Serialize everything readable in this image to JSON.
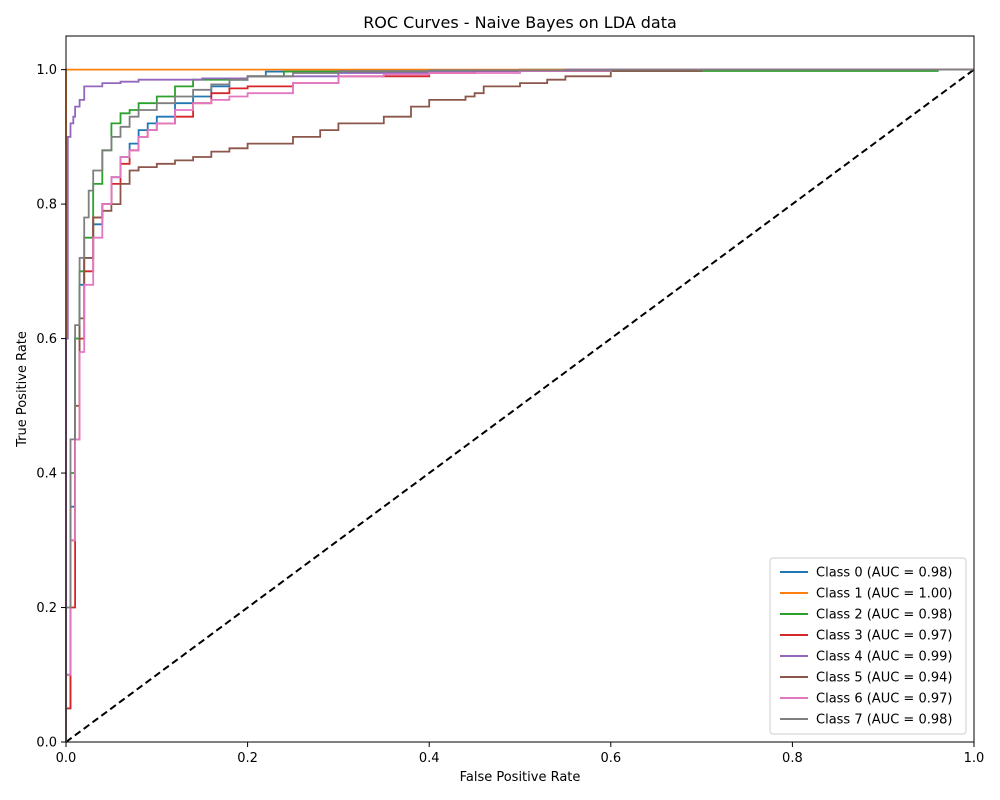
{
  "chart_data": {
    "type": "line",
    "title": "ROC Curves - Naive Bayes on LDA data",
    "xlabel": "False Positive Rate",
    "ylabel": "True Positive Rate",
    "xlim": [
      0.0,
      1.0
    ],
    "ylim": [
      0.0,
      1.05
    ],
    "xticks": [
      "0.0",
      "0.2",
      "0.4",
      "0.6",
      "0.8",
      "1.0"
    ],
    "yticks": [
      "0.0",
      "0.2",
      "0.4",
      "0.6",
      "0.8",
      "1.0"
    ],
    "grid": false,
    "legend_position": "lower-right",
    "series": [
      {
        "name": "Class 0 (AUC = 0.98)",
        "color": "#1f77b4",
        "points": [
          [
            0,
            0
          ],
          [
            0,
            0.05
          ],
          [
            0.005,
            0.35
          ],
          [
            0.01,
            0.6
          ],
          [
            0.015,
            0.68
          ],
          [
            0.02,
            0.72
          ],
          [
            0.03,
            0.77
          ],
          [
            0.04,
            0.8
          ],
          [
            0.05,
            0.84
          ],
          [
            0.06,
            0.87
          ],
          [
            0.07,
            0.89
          ],
          [
            0.08,
            0.91
          ],
          [
            0.09,
            0.92
          ],
          [
            0.1,
            0.93
          ],
          [
            0.12,
            0.95
          ],
          [
            0.14,
            0.96
          ],
          [
            0.16,
            0.975
          ],
          [
            0.18,
            0.985
          ],
          [
            0.2,
            0.99
          ],
          [
            0.22,
            0.997
          ],
          [
            0.3,
            0.999
          ],
          [
            0.5,
            1.0
          ],
          [
            1.0,
            1.0
          ]
        ]
      },
      {
        "name": "Class 1 (AUC = 1.00)",
        "color": "#ff7f0e",
        "points": [
          [
            0,
            0
          ],
          [
            0,
            1.0
          ],
          [
            1.0,
            1.0
          ]
        ]
      },
      {
        "name": "Class 2 (AUC = 0.98)",
        "color": "#2ca02c",
        "points": [
          [
            0,
            0
          ],
          [
            0,
            0.1
          ],
          [
            0.005,
            0.4
          ],
          [
            0.01,
            0.6
          ],
          [
            0.015,
            0.7
          ],
          [
            0.02,
            0.75
          ],
          [
            0.03,
            0.83
          ],
          [
            0.04,
            0.88
          ],
          [
            0.05,
            0.92
          ],
          [
            0.06,
            0.935
          ],
          [
            0.07,
            0.94
          ],
          [
            0.08,
            0.95
          ],
          [
            0.1,
            0.96
          ],
          [
            0.12,
            0.975
          ],
          [
            0.14,
            0.985
          ],
          [
            0.2,
            0.99
          ],
          [
            0.24,
            0.997
          ],
          [
            0.4,
            0.998
          ],
          [
            0.96,
            0.998
          ],
          [
            0.96,
            1.0
          ],
          [
            1.0,
            1.0
          ]
        ]
      },
      {
        "name": "Class 3 (AUC = 0.97)",
        "color": "#d62728",
        "points": [
          [
            0,
            0
          ],
          [
            0,
            0.05
          ],
          [
            0.005,
            0.2
          ],
          [
            0.01,
            0.45
          ],
          [
            0.015,
            0.6
          ],
          [
            0.02,
            0.7
          ],
          [
            0.03,
            0.78
          ],
          [
            0.04,
            0.8
          ],
          [
            0.05,
            0.83
          ],
          [
            0.06,
            0.86
          ],
          [
            0.07,
            0.88
          ],
          [
            0.08,
            0.9
          ],
          [
            0.09,
            0.91
          ],
          [
            0.1,
            0.92
          ],
          [
            0.12,
            0.93
          ],
          [
            0.14,
            0.95
          ],
          [
            0.16,
            0.965
          ],
          [
            0.18,
            0.972
          ],
          [
            0.2,
            0.975
          ],
          [
            0.25,
            0.98
          ],
          [
            0.3,
            0.99
          ],
          [
            0.4,
            0.995
          ],
          [
            0.45,
            0.998
          ],
          [
            0.6,
            1.0
          ],
          [
            1.0,
            1.0
          ]
        ]
      },
      {
        "name": "Class 4 (AUC = 0.99)",
        "color": "#9467bd",
        "points": [
          [
            0,
            0
          ],
          [
            0,
            0.6
          ],
          [
            0.002,
            0.9
          ],
          [
            0.005,
            0.92
          ],
          [
            0.008,
            0.93
          ],
          [
            0.01,
            0.945
          ],
          [
            0.015,
            0.955
          ],
          [
            0.02,
            0.975
          ],
          [
            0.04,
            0.98
          ],
          [
            0.06,
            0.982
          ],
          [
            0.08,
            0.985
          ],
          [
            0.15,
            0.987
          ],
          [
            0.2,
            0.99
          ],
          [
            0.3,
            0.995
          ],
          [
            0.4,
            0.998
          ],
          [
            0.55,
            1.0
          ],
          [
            1.0,
            1.0
          ]
        ]
      },
      {
        "name": "Class 5 (AUC = 0.94)",
        "color": "#8c564b",
        "points": [
          [
            0,
            0
          ],
          [
            0,
            0.1
          ],
          [
            0.005,
            0.3
          ],
          [
            0.01,
            0.5
          ],
          [
            0.015,
            0.63
          ],
          [
            0.02,
            0.72
          ],
          [
            0.03,
            0.78
          ],
          [
            0.04,
            0.79
          ],
          [
            0.05,
            0.8
          ],
          [
            0.06,
            0.83
          ],
          [
            0.07,
            0.85
          ],
          [
            0.08,
            0.855
          ],
          [
            0.1,
            0.86
          ],
          [
            0.12,
            0.865
          ],
          [
            0.14,
            0.87
          ],
          [
            0.16,
            0.878
          ],
          [
            0.18,
            0.883
          ],
          [
            0.2,
            0.89
          ],
          [
            0.25,
            0.9
          ],
          [
            0.28,
            0.91
          ],
          [
            0.3,
            0.92
          ],
          [
            0.35,
            0.93
          ],
          [
            0.38,
            0.945
          ],
          [
            0.4,
            0.955
          ],
          [
            0.44,
            0.96
          ],
          [
            0.45,
            0.965
          ],
          [
            0.46,
            0.975
          ],
          [
            0.5,
            0.98
          ],
          [
            0.53,
            0.985
          ],
          [
            0.55,
            0.99
          ],
          [
            0.6,
            0.998
          ],
          [
            0.7,
            1.0
          ],
          [
            1.0,
            1.0
          ]
        ]
      },
      {
        "name": "Class 6 (AUC = 0.97)",
        "color": "#e377c2",
        "points": [
          [
            0,
            0
          ],
          [
            0,
            0.1
          ],
          [
            0.005,
            0.3
          ],
          [
            0.01,
            0.45
          ],
          [
            0.015,
            0.58
          ],
          [
            0.02,
            0.68
          ],
          [
            0.03,
            0.75
          ],
          [
            0.04,
            0.8
          ],
          [
            0.05,
            0.84
          ],
          [
            0.06,
            0.87
          ],
          [
            0.07,
            0.88
          ],
          [
            0.08,
            0.9
          ],
          [
            0.09,
            0.91
          ],
          [
            0.1,
            0.92
          ],
          [
            0.12,
            0.94
          ],
          [
            0.14,
            0.95
          ],
          [
            0.16,
            0.955
          ],
          [
            0.18,
            0.96
          ],
          [
            0.2,
            0.965
          ],
          [
            0.25,
            0.98
          ],
          [
            0.3,
            0.99
          ],
          [
            0.35,
            0.993
          ],
          [
            0.4,
            0.995
          ],
          [
            0.5,
            0.998
          ],
          [
            0.6,
            1.0
          ],
          [
            1.0,
            1.0
          ]
        ]
      },
      {
        "name": "Class 7 (AUC = 0.98)",
        "color": "#7f7f7f",
        "points": [
          [
            0,
            0
          ],
          [
            0,
            0.2
          ],
          [
            0.005,
            0.45
          ],
          [
            0.01,
            0.62
          ],
          [
            0.015,
            0.72
          ],
          [
            0.02,
            0.78
          ],
          [
            0.025,
            0.82
          ],
          [
            0.03,
            0.85
          ],
          [
            0.04,
            0.88
          ],
          [
            0.05,
            0.9
          ],
          [
            0.06,
            0.915
          ],
          [
            0.07,
            0.93
          ],
          [
            0.08,
            0.94
          ],
          [
            0.1,
            0.95
          ],
          [
            0.12,
            0.96
          ],
          [
            0.14,
            0.97
          ],
          [
            0.16,
            0.978
          ],
          [
            0.18,
            0.985
          ],
          [
            0.2,
            0.99
          ],
          [
            0.25,
            0.995
          ],
          [
            0.3,
            0.998
          ],
          [
            0.4,
            0.999
          ],
          [
            0.6,
            1.0
          ],
          [
            1.0,
            1.0
          ]
        ]
      }
    ],
    "reference_line": {
      "color": "#000000",
      "style": "dashed",
      "points": [
        [
          0,
          0
        ],
        [
          1,
          1
        ]
      ]
    }
  }
}
